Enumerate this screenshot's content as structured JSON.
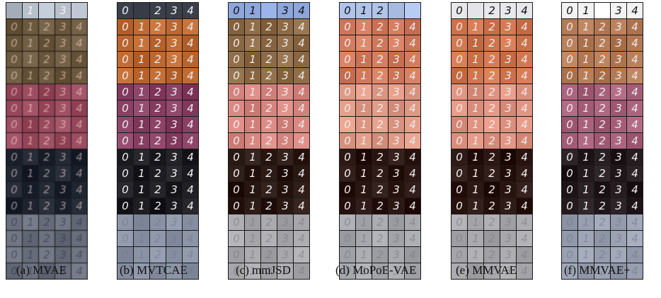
{
  "figure": {
    "panels": [
      {
        "id": "mvae",
        "caption": "(a) MVAE",
        "style": "noisy",
        "top_row": [
          "",
          "1",
          "",
          "3",
          ""
        ],
        "sections": [
          "#6d5a3f",
          "#9a4a5e",
          "#1e2430",
          "#6a6f7e"
        ],
        "top_color": "#b8c0cc"
      },
      {
        "id": "mvtcae",
        "caption": "(b) MVTCAE",
        "style": "mixed",
        "top_row": [
          "0",
          "",
          "2",
          "3",
          "4"
        ],
        "sections": [
          "#c06a32",
          "#8a3f64",
          "#1c1c22",
          "#8a93a6"
        ],
        "top_color": "#3a3f4a"
      },
      {
        "id": "mmjsd",
        "caption": "(c) mmJSD",
        "style": "clean",
        "top_row": [
          "0",
          "1",
          "",
          "3",
          "4"
        ],
        "sections": [
          "#8d6a45",
          "#d88680",
          "#2a1712",
          "#a9a9ad"
        ],
        "top_color": "#8ea6dc"
      },
      {
        "id": "mopoe",
        "caption": "(d) MoPoE-VAE",
        "style": "clean",
        "top_row": [
          "0",
          "1",
          "2",
          "",
          ""
        ],
        "sections": [
          "#d47a5e",
          "#e09a86",
          "#2a1410",
          "#a7a8ad"
        ],
        "top_color": "#b0c4ea"
      },
      {
        "id": "mmvae",
        "caption": "(e) MMVAE",
        "style": "clean",
        "top_row": [
          "0",
          "",
          "2",
          "3",
          "4"
        ],
        "sections": [
          "#d0744e",
          "#e29482",
          "#2a1410",
          "#a9a9ad"
        ],
        "top_color": "#e8e8ec"
      },
      {
        "id": "mmvaeplus",
        "caption": "(f) MMVAE+",
        "style": "mixed",
        "top_row": [
          "0",
          "1",
          "",
          "3",
          "4"
        ],
        "sections": [
          "#b47a56",
          "#a8607a",
          "#241a1e",
          "#9aa1b2"
        ],
        "top_color": "#f2f2f2"
      }
    ],
    "digits": [
      "0",
      "1",
      "2",
      "3",
      "4"
    ]
  }
}
